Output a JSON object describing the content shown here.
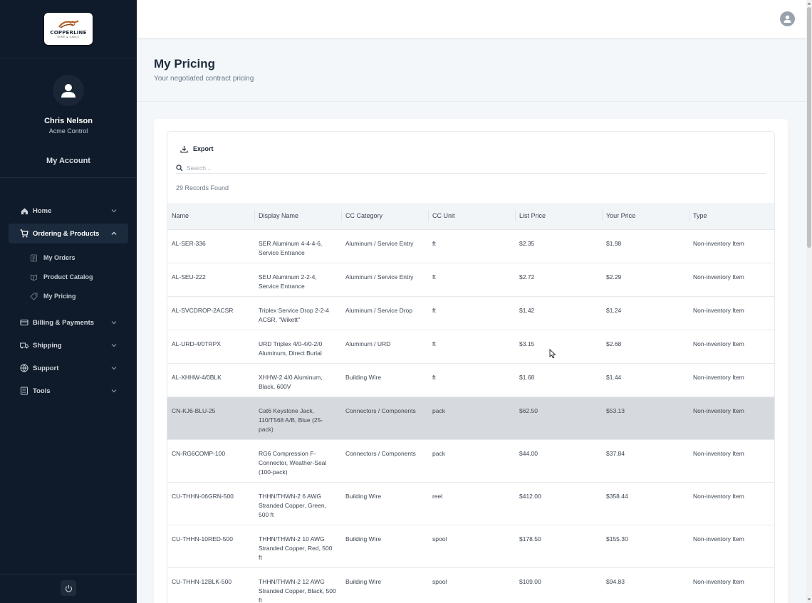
{
  "brand": {
    "name": "COPPERLINE",
    "tagline": "WIRE & CABLE"
  },
  "user": {
    "name": "Chris Nelson",
    "company": "Acme Control"
  },
  "sidebar": {
    "account_label": "My Account",
    "items": [
      {
        "label": "Home",
        "icon": "home-icon"
      },
      {
        "label": "Ordering & Products",
        "icon": "cart-icon"
      },
      {
        "label": "Billing & Payments",
        "icon": "billing-icon"
      },
      {
        "label": "Shipping",
        "icon": "truck-icon"
      },
      {
        "label": "Support",
        "icon": "globe-icon"
      },
      {
        "label": "Tools",
        "icon": "calculator-icon"
      }
    ],
    "sub_items": [
      {
        "label": "My Orders",
        "icon": "orders-icon"
      },
      {
        "label": "Product Catalog",
        "icon": "catalog-icon"
      },
      {
        "label": "My Pricing",
        "icon": "tag-icon"
      }
    ]
  },
  "header": {
    "title": "My Pricing",
    "subtitle": "Your negotiated contract pricing"
  },
  "toolbar": {
    "export_label": "Export",
    "search_placeholder": "Search...",
    "records_found": "29 Records Found"
  },
  "table": {
    "columns": [
      "Name",
      "Display Name",
      "CC Category",
      "CC Unit",
      "List Price",
      "Your Price",
      "Type"
    ],
    "rows": [
      [
        "AL-SER-336",
        "SER Aluminum 4-4-4-6, Service Entrance",
        "Aluminum / Service Entry",
        "ft",
        "$2.35",
        "$1.98",
        "Non-inventory Item"
      ],
      [
        "AL-SEU-222",
        "SEU Aluminum 2-2-4, Service Entrance",
        "Aluminum / Service Entry",
        "ft",
        "$2.72",
        "$2.29",
        "Non-inventory Item"
      ],
      [
        "AL-SVCDROP-2ACSR",
        "Triplex Service Drop 2-2-4 ACSR, \"Wikett\"",
        "Aluminum / Service Drop",
        "ft",
        "$1.42",
        "$1.24",
        "Non-inventory Item"
      ],
      [
        "AL-URD-4/0TRPX",
        "URD Triplex 4/0-4/0-2/0 Aluminum, Direct Burial",
        "Aluminum / URD",
        "ft",
        "$3.15",
        "$2.68",
        "Non-inventory Item"
      ],
      [
        "AL-XHHW-4/0BLK",
        "XHHW-2 4/0 Aluminum, Black, 600V",
        "Building Wire",
        "ft",
        "$1.68",
        "$1.44",
        "Non-inventory Item"
      ],
      [
        "CN-KJ6-BLU-25",
        "Cat6 Keystone Jack, 110/T568 A/B, Blue (25-pack)",
        "Connectors / Components",
        "pack",
        "$62.50",
        "$53.13",
        "Non-inventory Item"
      ],
      [
        "CN-RG6COMP-100",
        "RG6 Compression F-Connector, Weather-Seal (100-pack)",
        "Connectors / Components",
        "pack",
        "$44.00",
        "$37.84",
        "Non-inventory Item"
      ],
      [
        "CU-THHN-06GRN-500",
        "THHN/THWN-2 6 AWG Stranded Copper, Green, 500 ft",
        "Building Wire",
        "reel",
        "$412.00",
        "$358.44",
        "Non-inventory Item"
      ],
      [
        "CU-THHN-10RED-500",
        "THHN/THWN-2 10 AWG Stranded Copper, Red, 500 ft",
        "Building Wire",
        "spool",
        "$178.50",
        "$155.30",
        "Non-inventory Item"
      ],
      [
        "CU-THHN-12BLK-500",
        "THHN/THWN-2 12 AWG Stranded Copper, Black, 500 ft",
        "Building Wire",
        "spool",
        "$109.00",
        "$94.83",
        "Non-inventory Item"
      ]
    ]
  }
}
